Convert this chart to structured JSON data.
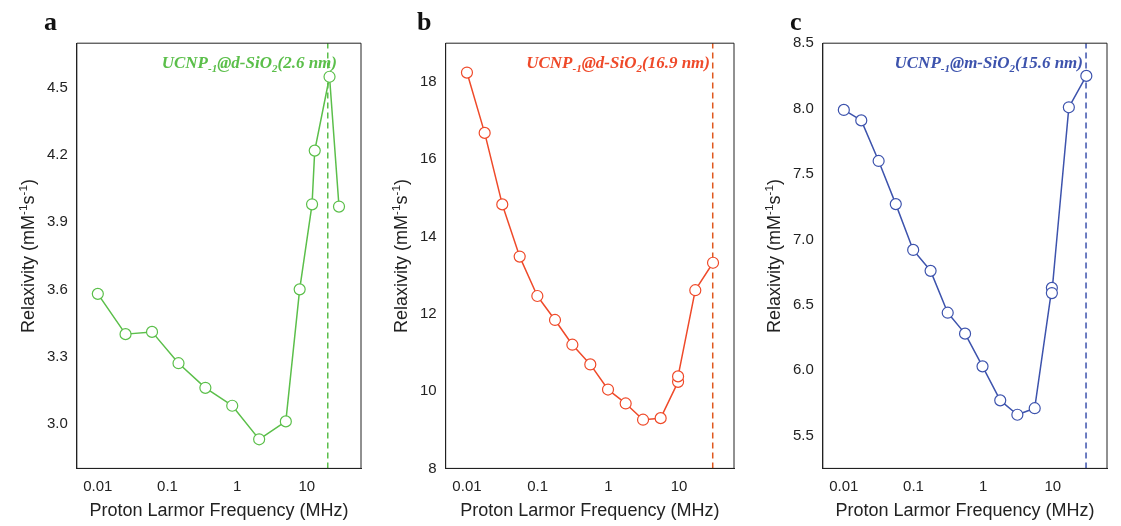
{
  "chart_data": [
    {
      "type": "line",
      "title": "a",
      "xlabel": "Proton Larmor Frequency (MHz)",
      "ylabel": "Relaxivity (mM$^{-1}$s$^{-1}$)",
      "log": "x",
      "marker": "circle",
      "line_style": "solid",
      "grid": false,
      "xlim": [
        0.005,
        60
      ],
      "xticks": [
        0.01,
        0.1,
        1,
        10
      ],
      "ylim": [
        2.8,
        4.7
      ],
      "yticks": [
        {
          "value": 3,
          "label": "3.0"
        },
        3.3,
        3.6,
        3.9,
        4.2,
        4.5
      ],
      "series": [
        {
          "name": "UCNP$_{-1}$@d-SiO$_{2}$(2.6 nm)",
          "color": "#5bbf4a",
          "x": [
            0.01,
            0.025,
            0.06,
            0.144,
            0.35,
            0.85,
            2.07,
            5.0,
            7.9,
            11.9,
            13.0,
            21.2,
            29
          ],
          "values": [
            3.58,
            3.4,
            3.41,
            3.27,
            3.16,
            3.08,
            2.93,
            3.01,
            3.6,
            3.98,
            4.22,
            4.55,
            3.97
          ]
        }
      ],
      "ref_lines": [
        {
          "axis": "x",
          "value": 20,
          "color": "#5bbf4a",
          "line_style": "dashed"
        }
      ]
    },
    {
      "type": "line",
      "title": "b",
      "xlabel": "Proton Larmor Frequency (MHz)",
      "ylabel": "Relaxivity (mM$^{-1}$s$^{-1}$)",
      "log": "x",
      "marker": "circle",
      "line_style": "solid",
      "grid": false,
      "xlim": [
        0.005,
        60
      ],
      "xticks": [
        0.01,
        0.1,
        1,
        10
      ],
      "ylim": [
        8,
        19
      ],
      "yticks": [
        8,
        10,
        12,
        14,
        16,
        18
      ],
      "series": [
        {
          "name": "UCNP$_{-1}$@d-SiO$_{2}$(16.9 nm)",
          "color": "#ef4a2a",
          "x": [
            0.01,
            0.0178,
            0.0316,
            0.0557,
            0.099,
            0.176,
            0.31,
            0.556,
            0.99,
            1.76,
            3.1,
            5.5,
            9.7,
            9.7,
            17,
            30.3
          ],
          "values": [
            18.24,
            16.68,
            14.83,
            13.48,
            12.46,
            11.84,
            11.2,
            10.69,
            10.04,
            9.68,
            9.26,
            9.3,
            10.24,
            10.38,
            12.61,
            13.32
          ]
        }
      ],
      "ref_lines": [
        {
          "axis": "x",
          "value": 30,
          "color": "#e0581f",
          "line_style": "dashed"
        }
      ]
    },
    {
      "type": "line",
      "title": "c",
      "xlabel": "Proton Larmor Frequency (MHz)",
      "ylabel": "Relaxivity (mM$^{-1}$s$^{-1}$)",
      "log": "x",
      "marker": "circle",
      "line_style": "solid",
      "grid": false,
      "xlim": [
        0.005,
        60
      ],
      "xticks": [
        0.01,
        0.1,
        1,
        10
      ],
      "ylim": [
        5.25,
        8.5
      ],
      "yticks": [
        5.5,
        {
          "value": 6,
          "label": "6.0"
        },
        6.5,
        {
          "value": 7,
          "label": "7.0"
        },
        7.5,
        {
          "value": 8,
          "label": "8.0"
        },
        8.5
      ],
      "series": [
        {
          "name": "UCNP$_{-1}$@m-SiO$_{2}$(15.6 nm)",
          "color": "#3d53ad",
          "x": [
            0.01,
            0.0178,
            0.0316,
            0.0557,
            0.099,
            0.176,
            0.31,
            0.55,
            0.98,
            1.76,
            3.1,
            5.5,
            9.7,
            9.7,
            17,
            30.3
          ],
          "values": [
            7.99,
            7.91,
            7.6,
            7.27,
            6.92,
            6.76,
            6.44,
            6.28,
            6.03,
            5.77,
            5.66,
            5.71,
            6.63,
            6.59,
            8.01,
            8.25
          ]
        }
      ],
      "ref_lines": [
        {
          "axis": "x",
          "value": 30,
          "color": "#3d53ad",
          "line_style": "dashed"
        }
      ]
    }
  ]
}
